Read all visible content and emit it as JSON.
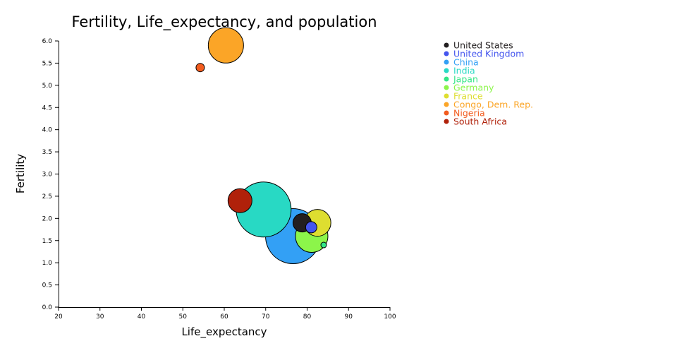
{
  "chart_data": {
    "type": "scatter",
    "title": "Fertility, Life_expectancy, and population",
    "xlabel": "Life_expectancy",
    "ylabel": "Fertility",
    "xlim": [
      20,
      100
    ],
    "ylim": [
      0,
      6
    ],
    "xticks": [
      20,
      30,
      40,
      50,
      60,
      70,
      80,
      90,
      100
    ],
    "xtick_labels": [
      "20",
      "30",
      "40",
      "50",
      "60",
      "70",
      "80",
      "90",
      "100"
    ],
    "yticks": [
      0,
      0.5,
      1,
      1.5,
      2,
      2.5,
      3,
      3.5,
      4,
      4.5,
      5,
      5.5,
      6
    ],
    "ytick_labels": [
      "0.0",
      "0.5",
      "1.0",
      "1.5",
      "2.0",
      "2.5",
      "3.0",
      "3.5",
      "4.0",
      "4.5",
      "5.0",
      "5.5",
      "6.0"
    ],
    "legend_position": "top-right",
    "series": [
      {
        "name": "United States",
        "color": "#231f20",
        "x": 78.8,
        "y": 1.9,
        "size": 13
      },
      {
        "name": "United Kingdom",
        "color": "#4455ee",
        "x": 81.0,
        "y": 1.8,
        "size": 8
      },
      {
        "name": "China",
        "color": "#33a0f5",
        "x": 76.6,
        "y": 1.6,
        "size": 39
      },
      {
        "name": "India",
        "color": "#28d9c4",
        "x": 69.5,
        "y": 2.2,
        "size": 39
      },
      {
        "name": "Japan",
        "color": "#33e686",
        "x": 84.0,
        "y": 1.4,
        "size": 4
      },
      {
        "name": "Germany",
        "color": "#8cf54a",
        "x": 81.1,
        "y": 1.6,
        "size": 23
      },
      {
        "name": "France",
        "color": "#dede30",
        "x": 82.5,
        "y": 1.9,
        "size": 19
      },
      {
        "name": "Congo, Dem. Rep.",
        "color": "#fba527",
        "x": 60.4,
        "y": 5.9,
        "size": 25
      },
      {
        "name": "Nigeria",
        "color": "#f25c1f",
        "x": 54.2,
        "y": 5.4,
        "size": 6
      },
      {
        "name": "South Africa",
        "color": "#b0210a",
        "x": 63.8,
        "y": 2.4,
        "size": 17
      }
    ]
  }
}
